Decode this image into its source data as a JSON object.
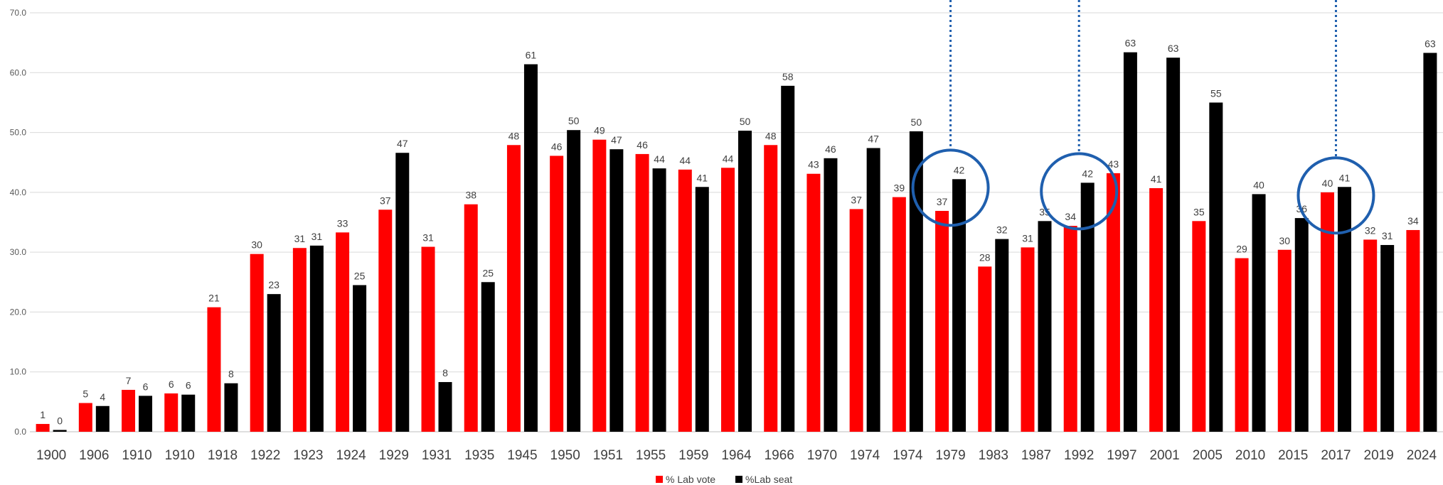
{
  "chart_data": {
    "type": "bar",
    "categories": [
      "1900",
      "1906",
      "1910",
      "1910",
      "1918",
      "1922",
      "1923",
      "1924",
      "1929",
      "1931",
      "1935",
      "1945",
      "1950",
      "1951",
      "1955",
      "1959",
      "1964",
      "1966",
      "1970",
      "1974",
      "1974",
      "1979",
      "1983",
      "1987",
      "1992",
      "1997",
      "2001",
      "2005",
      "2010",
      "2015",
      "2017",
      "2019",
      "2024"
    ],
    "series": [
      {
        "name": "% Lab vote",
        "color": "#ff0000",
        "values": [
          1.3,
          4.8,
          7.0,
          6.4,
          20.8,
          29.7,
          30.7,
          33.3,
          37.1,
          30.9,
          38.0,
          47.9,
          46.1,
          48.8,
          46.4,
          43.8,
          44.1,
          47.9,
          43.1,
          37.2,
          39.2,
          36.9,
          27.6,
          30.8,
          34.4,
          43.2,
          40.7,
          35.2,
          29.0,
          30.4,
          40.0,
          32.1,
          33.7
        ],
        "labels": [
          "1",
          "5",
          "7",
          "6",
          "21",
          "30",
          "31",
          "33",
          "37",
          "31",
          "38",
          "48",
          "46",
          "49",
          "46",
          "44",
          "44",
          "48",
          "43",
          "37",
          "39",
          "37",
          "28",
          "31",
          "34",
          "43",
          "41",
          "35",
          "29",
          "30",
          "40",
          "32",
          "34"
        ]
      },
      {
        "name": "%Lab seat",
        "color": "#000000",
        "values": [
          0.3,
          4.3,
          6.0,
          6.2,
          8.1,
          23.0,
          31.1,
          24.5,
          46.6,
          8.3,
          25.0,
          61.4,
          50.4,
          47.2,
          44.0,
          40.9,
          50.3,
          57.8,
          45.7,
          47.4,
          50.2,
          42.2,
          32.2,
          35.2,
          41.6,
          63.4,
          62.5,
          55.0,
          39.7,
          35.7,
          40.9,
          31.2,
          63.3
        ],
        "labels": [
          "0",
          "4",
          "6",
          "6",
          "8",
          "23",
          "31",
          "25",
          "47",
          "8",
          "25",
          "61",
          "50",
          "47",
          "44",
          "41",
          "50",
          "58",
          "46",
          "47",
          "50",
          "42",
          "32",
          "35",
          "42",
          "63",
          "63",
          "55",
          "40",
          "36",
          "41",
          "31",
          "63"
        ]
      }
    ],
    "ylim": [
      0,
      70
    ],
    "yticks": [
      "0.0",
      "10.0",
      "20.0",
      "30.0",
      "40.0",
      "50.0",
      "60.0",
      "70.0"
    ],
    "grid": true,
    "legend": "bottom-center",
    "annotations": {
      "highlighted_categories": [
        "1979",
        "1992",
        "2017"
      ],
      "marker": "circle with dotted vertical line",
      "color": "#1f5fae"
    }
  }
}
